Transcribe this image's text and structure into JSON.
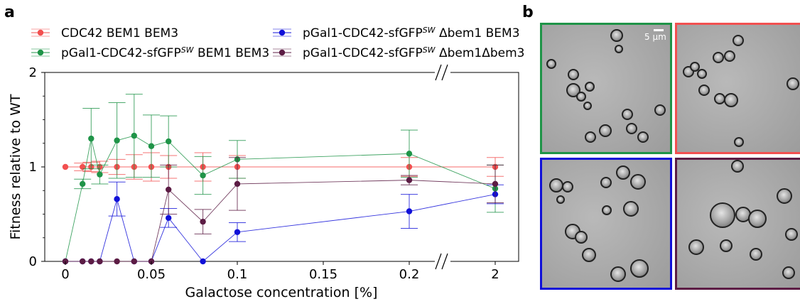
{
  "panel_a_letter": "a",
  "panel_b_letter": "b",
  "scale_bar_label": "5 µm",
  "chart_data": {
    "type": "line",
    "xlabel": "Galactose concentration [%]",
    "ylabel": "Fitness relative to WT",
    "x_tick_labels": [
      "0",
      "0.05",
      "0.1",
      "0.15",
      "0.2",
      "2"
    ],
    "x_tick_values": [
      0,
      0.05,
      0.1,
      0.15,
      0.2,
      2
    ],
    "y_tick_labels": [
      "0",
      "1",
      "2"
    ],
    "ylim": [
      0,
      2
    ],
    "axis_break": "between 0.2 and 2",
    "legend": "top, two columns",
    "error_bars": true,
    "series": [
      {
        "name": "CDC42 BEM1 BEM3",
        "color": "#f25050",
        "x": [
          0,
          0.01,
          0.015,
          0.02,
          0.03,
          0.04,
          0.05,
          0.06,
          0.08,
          0.1,
          0.2,
          2
        ],
        "y": [
          1.0,
          1.0,
          1.0,
          1.0,
          1.0,
          1.0,
          1.0,
          1.0,
          1.0,
          1.0,
          1.0,
          1.0
        ],
        "err": [
          0,
          0.04,
          0.05,
          0.06,
          0.08,
          0.13,
          0.15,
          0.12,
          0.15,
          0.12,
          0.1,
          0.1
        ]
      },
      {
        "name": "pGal1-CDC42-sfGFP^SW BEM1 BEM3",
        "color": "#1f9448",
        "x": [
          0,
          0.01,
          0.015,
          0.02,
          0.03,
          0.04,
          0.05,
          0.06,
          0.08,
          0.1,
          0.2,
          2
        ],
        "y": [
          0,
          0.82,
          1.3,
          0.92,
          1.28,
          1.33,
          1.22,
          1.27,
          0.91,
          1.08,
          1.14,
          0.77
        ],
        "err": [
          0,
          0.05,
          0.32,
          0.1,
          0.4,
          0.44,
          0.33,
          0.27,
          0.2,
          0.2,
          0.25,
          0.25
        ]
      },
      {
        "name": "pGal1-CDC42-sfGFP^SW Δbem1 BEM3",
        "color": "#1010d8",
        "x": [
          0,
          0.01,
          0.015,
          0.02,
          0.03,
          0.04,
          0.05,
          0.06,
          0.08,
          0.1,
          0.2,
          2
        ],
        "y": [
          0,
          0,
          0,
          0,
          0.66,
          0,
          0,
          0.46,
          0,
          0.31,
          0.53,
          0.71
        ],
        "err": [
          0,
          0,
          0,
          0,
          0.18,
          0,
          0,
          0.1,
          0,
          0.1,
          0.18,
          0.1
        ]
      },
      {
        "name": "pGal1-CDC42-sfGFP^SW Δbem1Δbem3",
        "color": "#5c1c44",
        "x": [
          0,
          0.01,
          0.015,
          0.02,
          0.03,
          0.04,
          0.05,
          0.06,
          0.08,
          0.1,
          0.2,
          2
        ],
        "y": [
          0,
          0,
          0,
          0,
          0,
          0,
          0,
          0.76,
          0.42,
          0.82,
          0.86,
          0.82
        ],
        "err": [
          0,
          0,
          0,
          0,
          0,
          0,
          0,
          0.26,
          0.13,
          0.28,
          0.05,
          0.2
        ]
      }
    ]
  },
  "legend_entries": [
    {
      "prefix": "CDC42 BEM1 BEM3",
      "sup": "",
      "suffix": ""
    },
    {
      "prefix": "pGal1-CDC42-sfGFP",
      "sup": "SW",
      "suffix": " BEM1 BEM3"
    },
    {
      "prefix": "pGal1-CDC42-sfGFP",
      "sup": "SW",
      "suffix": " Δbem1 BEM3"
    },
    {
      "prefix": "pGal1-CDC42-sfGFP",
      "sup": "SW",
      "suffix": " Δbem1Δbem3"
    }
  ],
  "micrographs": [
    {
      "frame_color": "#1f9448"
    },
    {
      "frame_color": "#f25050"
    },
    {
      "frame_color": "#1010d8"
    },
    {
      "frame_color": "#5c1c44"
    }
  ]
}
